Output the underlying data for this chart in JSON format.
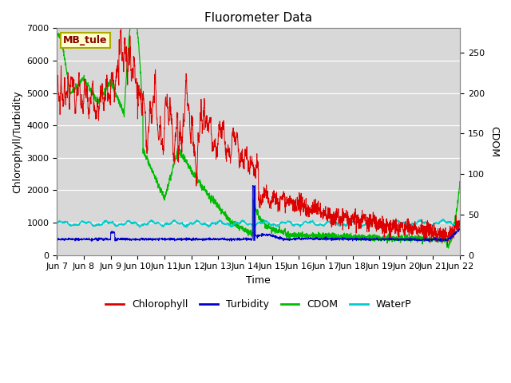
{
  "title": "Fluorometer Data",
  "xlabel": "Time",
  "ylabel_left": "Chlorophyll/Turbidity",
  "ylabel_right": "CDOM",
  "annotation": "MB_tule",
  "ylim_left": [
    0,
    7000
  ],
  "ylim_right": [
    0,
    280
  ],
  "colors": {
    "chlorophyll": "#dd0000",
    "turbidity": "#0000cc",
    "cdom": "#00bb00",
    "waterp": "#00cccc"
  },
  "legend_labels": [
    "Chlorophyll",
    "Turbidity",
    "CDOM",
    "WaterP"
  ],
  "x_tick_labels": [
    "Jun 7",
    "Jun 8",
    "Jun 9",
    "Jun 10",
    "Jun 11",
    "Jun 12",
    "Jun 13",
    "Jun 14",
    "Jun 15",
    "Jun 16",
    "Jun 17",
    "Jun 18",
    "Jun 19",
    "Jun 20",
    "Jun 21",
    "Jun 22"
  ],
  "plot_bg_color": "#d8d8d8",
  "grid_color": "#ffffff",
  "title_fontsize": 11,
  "axis_fontsize": 9,
  "tick_fontsize": 8
}
